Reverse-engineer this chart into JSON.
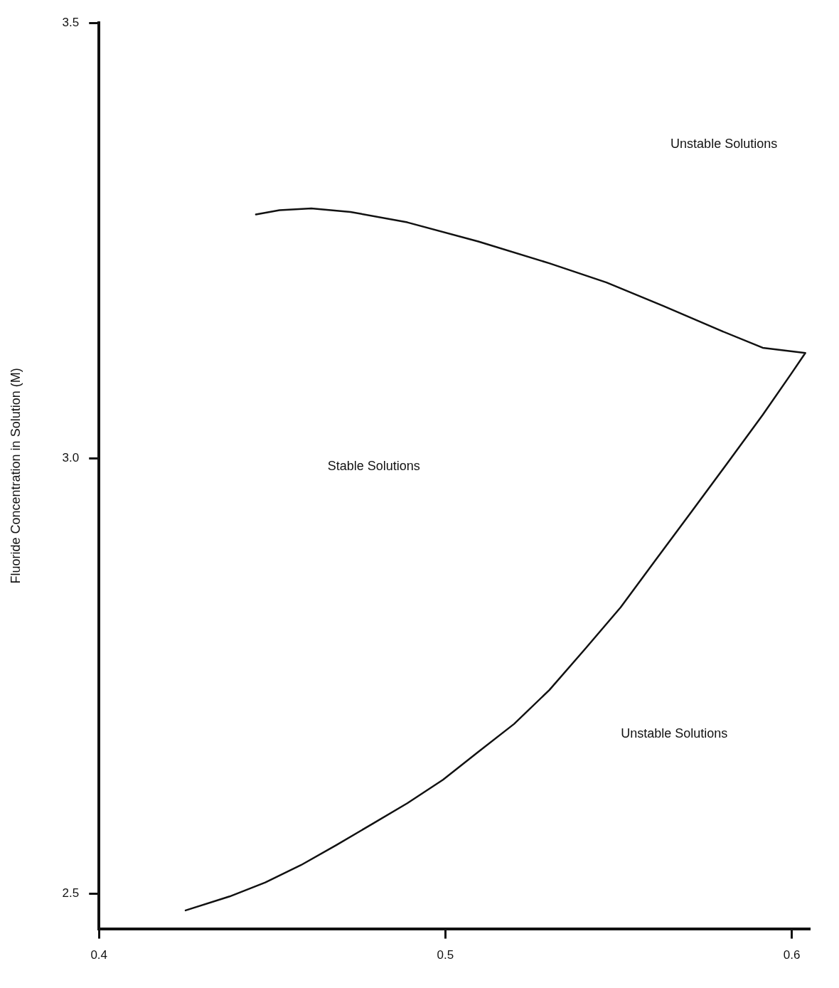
{
  "chart_data": {
    "type": "line",
    "ylabel": "Fluoride Concentration in Solution (M)",
    "xlim": [
      0.4,
      0.605
    ],
    "xticks": [
      0.4,
      0.5,
      0.6
    ],
    "ylim": [
      2.46,
      3.5
    ],
    "yticks": [
      2.5,
      {
        "value": 3,
        "label": "3.0"
      },
      3.5
    ],
    "grid": false,
    "legend": false,
    "marker": "none",
    "line_style": "solid",
    "series": [
      {
        "color": "#111111",
        "x": [
          0.4453,
          0.4521,
          0.4613,
          0.4726,
          0.489,
          0.5095,
          0.53,
          0.5465,
          0.5629,
          0.5793,
          0.5916,
          0.6039,
          0.5998,
          0.5916,
          0.5813,
          0.5711,
          0.5608,
          0.5506,
          0.5403,
          0.53,
          0.5198,
          0.5095,
          0.4993,
          0.489,
          0.4788,
          0.4685,
          0.4583,
          0.448,
          0.4377,
          0.425
        ],
        "values": [
          3.28,
          3.285,
          3.287,
          3.283,
          3.271,
          3.249,
          3.224,
          3.202,
          3.175,
          3.147,
          3.127,
          3.121,
          3.097,
          3.05,
          2.994,
          2.939,
          2.884,
          2.829,
          2.781,
          2.734,
          2.695,
          2.663,
          2.631,
          2.604,
          2.58,
          2.556,
          2.533,
          2.513,
          2.497,
          2.481
        ]
      }
    ],
    "annotations": [
      "Unstable Solutions",
      "Stable Solutions",
      "Unstable Solutions"
    ]
  }
}
